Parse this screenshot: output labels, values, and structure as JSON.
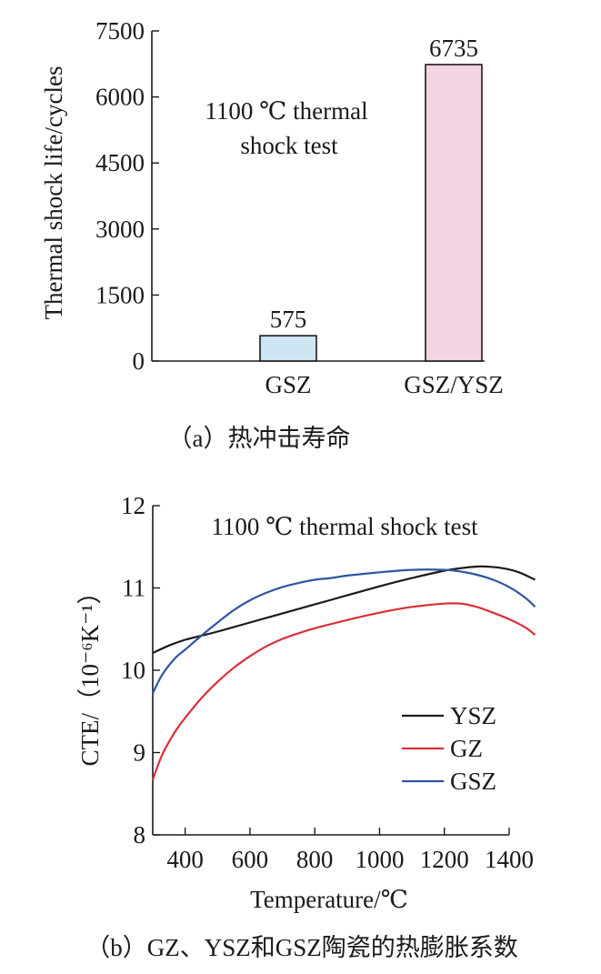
{
  "chart_data": [
    {
      "type": "bar",
      "ylabel": "Thermal shock life/cycles",
      "xlabel": "",
      "annotation_lines": [
        "1100 ℃ thermal",
        "shock test"
      ],
      "caption": "（a）热冲击寿命",
      "categories": [
        "GSZ",
        "GSZ/YSZ"
      ],
      "values": [
        575,
        6735
      ],
      "value_labels": [
        "575",
        "6735"
      ],
      "bar_colors": [
        "#cde4f2",
        "#f3d4e2"
      ],
      "ylim": [
        0,
        7500
      ],
      "yticks": [
        0,
        1500,
        3000,
        4500,
        6000,
        7500
      ],
      "ytick_labels": [
        "0",
        "1500",
        "3000",
        "4500",
        "6000",
        "7500"
      ],
      "grid": false
    },
    {
      "type": "line",
      "ylabel": "CTE/（10⁻⁶K⁻¹）",
      "xlabel": "Temperature/℃",
      "annotation": "1100 ℃ thermal shock test",
      "caption": "（b）GZ、YSZ和GSZ陶瓷的热膨胀系数",
      "xlim": [
        300,
        1480
      ],
      "ylim": [
        8,
        12
      ],
      "xticks": [
        400,
        600,
        800,
        1000,
        1200,
        1400
      ],
      "xtick_labels": [
        "400",
        "600",
        "800",
        "1000",
        "1200",
        "1400"
      ],
      "yticks": [
        8,
        9,
        10,
        11,
        12
      ],
      "ytick_labels": [
        "8",
        "9",
        "10",
        "11",
        "12"
      ],
      "grid": false,
      "legend_position": "lower-right",
      "series": [
        {
          "name": "YSZ",
          "color": "#1a1a1a",
          "x": [
            300,
            350,
            400,
            450,
            500,
            600,
            700,
            800,
            900,
            1000,
            1100,
            1200,
            1250,
            1300,
            1330,
            1380,
            1430,
            1480
          ],
          "y": [
            10.21,
            10.3,
            10.37,
            10.42,
            10.47,
            10.58,
            10.69,
            10.8,
            10.91,
            11.02,
            11.12,
            11.21,
            11.24,
            11.26,
            11.26,
            11.24,
            11.19,
            11.1
          ]
        },
        {
          "name": "GZ",
          "color": "#d9303a",
          "x": [
            300,
            330,
            370,
            400,
            450,
            500,
            550,
            600,
            650,
            700,
            750,
            800,
            900,
            1000,
            1100,
            1200,
            1250,
            1300,
            1350,
            1400,
            1450,
            1480
          ],
          "y": [
            8.67,
            8.98,
            9.26,
            9.42,
            9.66,
            9.86,
            10.03,
            10.17,
            10.29,
            10.38,
            10.45,
            10.51,
            10.61,
            10.7,
            10.77,
            10.81,
            10.81,
            10.77,
            10.7,
            10.62,
            10.52,
            10.43
          ]
        },
        {
          "name": "GSZ",
          "color": "#2f55a4",
          "x": [
            300,
            330,
            370,
            400,
            450,
            500,
            550,
            600,
            650,
            700,
            750,
            800,
            850,
            900,
            1000,
            1100,
            1200,
            1250,
            1300,
            1350,
            1400,
            1450,
            1480
          ],
          "y": [
            9.72,
            9.95,
            10.15,
            10.25,
            10.42,
            10.58,
            10.73,
            10.85,
            10.94,
            11.01,
            11.06,
            11.1,
            11.12,
            11.15,
            11.19,
            11.22,
            11.22,
            11.2,
            11.16,
            11.1,
            11.01,
            10.88,
            10.77
          ]
        }
      ]
    }
  ]
}
